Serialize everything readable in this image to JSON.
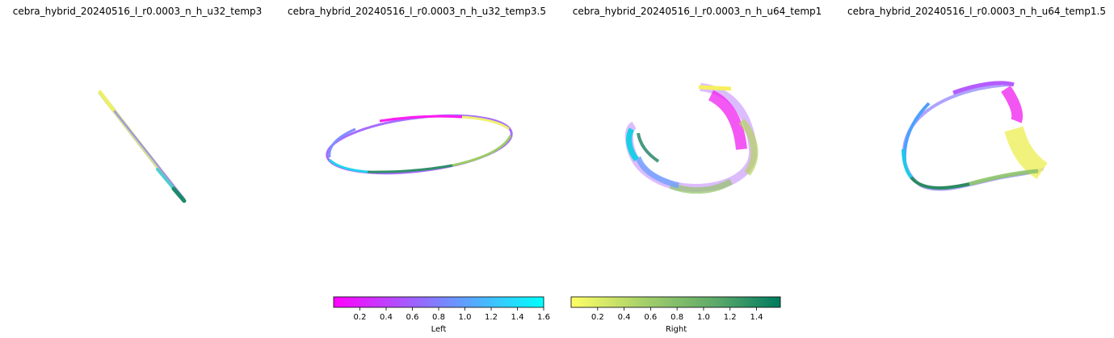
{
  "chart_data": [
    {
      "type": "scatter",
      "title": "cebra_hybrid_20240516_l_r0.0003_n_h_u32_temp3",
      "shape": "line",
      "path": [
        [
          124,
          115
        ],
        [
          145,
          148
        ],
        [
          165,
          175
        ],
        [
          180,
          195
        ],
        [
          198,
          215
        ],
        [
          214,
          233
        ],
        [
          227,
          248
        ]
      ]
    },
    {
      "type": "scatter",
      "title": "cebra_hybrid_20240516_l_r0.0003_n_h_u32_temp3.5",
      "shape": "ellipse",
      "ellipse": {
        "cx": 519,
        "cy": 179,
        "rx": 115,
        "ry": 33,
        "rot": -7
      }
    },
    {
      "type": "scatter",
      "title": "cebra_hybrid_20240516_l_r0.0003_n_h_u64_temp1",
      "shape": "spiral",
      "path": [
        [
          867,
          108
        ],
        [
          905,
          118
        ],
        [
          925,
          145
        ],
        [
          932,
          185
        ],
        [
          918,
          215
        ],
        [
          890,
          232
        ],
        [
          850,
          232
        ],
        [
          815,
          222
        ],
        [
          790,
          205
        ],
        [
          780,
          185
        ],
        [
          782,
          160
        ]
      ]
    },
    {
      "type": "scatter",
      "title": "cebra_hybrid_20240516_l_r0.0003_n_h_u64_temp1.5",
      "shape": "loop",
      "path": [
        [
          1250,
          105
        ],
        [
          1200,
          110
        ],
        [
          1150,
          128
        ],
        [
          1125,
          160
        ],
        [
          1118,
          190
        ],
        [
          1125,
          215
        ],
        [
          1145,
          232
        ],
        [
          1190,
          230
        ],
        [
          1235,
          220
        ],
        [
          1275,
          212
        ],
        [
          1290,
          210
        ],
        [
          1270,
          190
        ],
        [
          1255,
          160
        ],
        [
          1252,
          130
        ],
        [
          1250,
          105
        ]
      ]
    }
  ],
  "colorbars": [
    {
      "label": "Left",
      "colors": [
        "#ff00ff",
        "#00ffff"
      ],
      "vmin": 0.0,
      "vmax": 1.6,
      "ticks": [
        "0.2",
        "0.4",
        "0.6",
        "0.8",
        "1.0",
        "1.2",
        "1.4",
        "1.6"
      ],
      "tick_values": [
        0.2,
        0.4,
        0.6,
        0.8,
        1.0,
        1.2,
        1.4,
        1.6
      ]
    },
    {
      "label": "Right",
      "colors": [
        "#ffff66",
        "#a5cf6a",
        "#5aa86a",
        "#007a5e"
      ],
      "vmin": 0.0,
      "vmax": 1.58,
      "ticks": [
        "0.2",
        "0.4",
        "0.6",
        "0.8",
        "1.0",
        "1.2",
        "1.4"
      ],
      "tick_values": [
        0.2,
        0.4,
        0.6,
        0.8,
        1.0,
        1.2,
        1.4
      ]
    }
  ]
}
